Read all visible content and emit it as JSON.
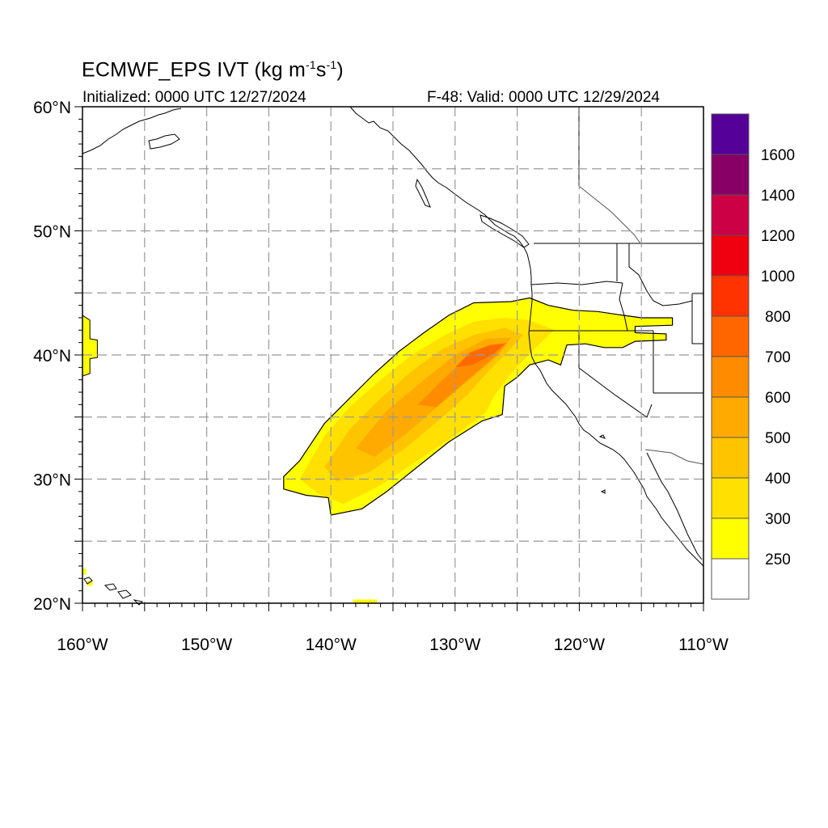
{
  "title": {
    "prefix": "ECMWF_EPS IVT (kg m",
    "sup1": "-1",
    "mid": "s",
    "sup2": "-1",
    "suffix": ")"
  },
  "subtitle_left": "Initialized: 0000 UTC 12/27/2024",
  "subtitle_right": "F-48: Valid: 0000 UTC 12/29/2024",
  "map": {
    "lon_range": [
      -160,
      -110
    ],
    "lat_range": [
      20,
      60
    ],
    "lat_labels": [
      {
        "lat": 60,
        "text": "60°N"
      },
      {
        "lat": 50,
        "text": "50°N"
      },
      {
        "lat": 40,
        "text": "40°N"
      },
      {
        "lat": 30,
        "text": "30°N"
      },
      {
        "lat": 20,
        "text": "20°N"
      }
    ],
    "lon_labels": [
      {
        "lon": -160,
        "text": "160°W"
      },
      {
        "lon": -150,
        "text": "150°W"
      },
      {
        "lon": -140,
        "text": "140°W"
      },
      {
        "lon": -130,
        "text": "130°W"
      },
      {
        "lon": -120,
        "text": "120°W"
      },
      {
        "lon": -110,
        "text": "110°W"
      }
    ],
    "grid_lons": [
      -155,
      -150,
      -145,
      -140,
      -135,
      -130,
      -125,
      -120,
      -115
    ],
    "grid_lats": [
      25,
      30,
      35,
      40,
      45,
      50,
      55
    ],
    "grid_color": "#999999",
    "ivt_outline": [
      [
        -143.8,
        30.2
      ],
      [
        -142.5,
        31.5
      ],
      [
        -140.5,
        34.5
      ],
      [
        -138.5,
        36.5
      ],
      [
        -136.5,
        38.5
      ],
      [
        -134.5,
        40.3
      ],
      [
        -132.5,
        41.8
      ],
      [
        -130.5,
        43.2
      ],
      [
        -128.5,
        44.2
      ],
      [
        -125.5,
        44.3
      ],
      [
        -124.0,
        44.6
      ],
      [
        -122.5,
        44.0
      ],
      [
        -120.5,
        43.6
      ],
      [
        -118.5,
        43.5
      ],
      [
        -116.5,
        43.2
      ],
      [
        -115.0,
        43.0
      ],
      [
        -112.5,
        43.0
      ],
      [
        -112.5,
        42.4
      ],
      [
        -115.5,
        42.3
      ],
      [
        -115.5,
        41.8
      ],
      [
        -113.0,
        41.7
      ],
      [
        -113.0,
        41.2
      ],
      [
        -115.5,
        41.1
      ],
      [
        -116.5,
        40.6
      ],
      [
        -118.0,
        40.6
      ],
      [
        -119.5,
        40.9
      ],
      [
        -121.0,
        40.8
      ],
      [
        -121.5,
        39.2
      ],
      [
        -122.5,
        39.6
      ],
      [
        -124.0,
        39.2
      ],
      [
        -125.0,
        38.2
      ],
      [
        -126.0,
        37.5
      ],
      [
        -126.2,
        35.2
      ],
      [
        -127.8,
        34.7
      ],
      [
        -130.5,
        33.0
      ],
      [
        -133.0,
        31.0
      ],
      [
        -135.5,
        29.0
      ],
      [
        -137.5,
        27.6
      ],
      [
        -140.0,
        27.1
      ],
      [
        -140.2,
        28.5
      ],
      [
        -142.0,
        28.7
      ],
      [
        -143.8,
        29.2
      ]
    ],
    "ivt_band_300": [
      [
        -142.5,
        30.0
      ],
      [
        -140.5,
        33.5
      ],
      [
        -138.5,
        35.8
      ],
      [
        -136.0,
        38.0
      ],
      [
        -133.5,
        40.0
      ],
      [
        -131.0,
        41.5
      ],
      [
        -128.5,
        42.7
      ],
      [
        -126.0,
        43.0
      ],
      [
        -124.0,
        42.8
      ],
      [
        -122.0,
        42.0
      ],
      [
        -123.5,
        40.6
      ],
      [
        -125.5,
        38.5
      ],
      [
        -126.8,
        36.8
      ],
      [
        -127.5,
        35.4
      ],
      [
        -130.0,
        33.5
      ],
      [
        -133.0,
        31.5
      ],
      [
        -136.0,
        29.5
      ],
      [
        -139.0,
        28.0
      ],
      [
        -141.0,
        28.8
      ]
    ],
    "ivt_band_400": [
      [
        -140.5,
        31.0
      ],
      [
        -138.5,
        34.0
      ],
      [
        -136.0,
        36.5
      ],
      [
        -133.5,
        38.7
      ],
      [
        -131.0,
        40.5
      ],
      [
        -128.5,
        41.6
      ],
      [
        -126.0,
        42.2
      ],
      [
        -124.5,
        41.6
      ],
      [
        -126.0,
        40.0
      ],
      [
        -127.5,
        38.5
      ],
      [
        -129.0,
        36.8
      ],
      [
        -131.0,
        35.0
      ],
      [
        -134.0,
        32.5
      ],
      [
        -137.0,
        30.5
      ],
      [
        -139.5,
        29.8
      ]
    ],
    "ivt_band_500": [
      [
        -138.0,
        32.5
      ],
      [
        -135.5,
        35.5
      ],
      [
        -132.5,
        38.0
      ],
      [
        -130.0,
        40.0
      ],
      [
        -127.5,
        41.3
      ],
      [
        -125.5,
        41.4
      ],
      [
        -126.5,
        40.0
      ],
      [
        -128.5,
        38.3
      ],
      [
        -131.0,
        36.2
      ],
      [
        -134.0,
        33.6
      ],
      [
        -136.5,
        31.8
      ]
    ],
    "ivt_band_600": [
      [
        -133.0,
        36.0
      ],
      [
        -131.0,
        38.0
      ],
      [
        -129.0,
        39.8
      ],
      [
        -127.2,
        40.8
      ],
      [
        -125.8,
        41.0
      ],
      [
        -127.0,
        39.7
      ],
      [
        -129.0,
        38.0
      ],
      [
        -131.5,
        35.8
      ]
    ],
    "ivt_band_700": [
      [
        -130.0,
        39.0
      ],
      [
        -128.8,
        40.2
      ],
      [
        -127.2,
        40.8
      ],
      [
        -126.0,
        40.9
      ],
      [
        -127.0,
        40.0
      ],
      [
        -128.6,
        39.2
      ]
    ],
    "small_patches": [
      {
        "poly": [
          [
            -160,
            43.2
          ],
          [
            -159.4,
            42.8
          ],
          [
            -159.4,
            41.3
          ],
          [
            -158.8,
            41.2
          ],
          [
            -158.8,
            39.8
          ],
          [
            -159.4,
            39.7
          ],
          [
            -159.4,
            38.5
          ],
          [
            -160,
            38.3
          ]
        ]
      },
      {
        "poly": [
          [
            -138.2,
            20.3
          ],
          [
            -136.3,
            20.3
          ],
          [
            -136.3,
            20.0
          ],
          [
            -138.2,
            20.0
          ]
        ]
      },
      {
        "poly": [
          [
            -160,
            22.8
          ],
          [
            -159.7,
            22.8
          ],
          [
            -159.7,
            22.3
          ],
          [
            -160,
            22.3
          ]
        ]
      },
      {
        "poly": [
          [
            -159.6,
            21.8
          ],
          [
            -159.2,
            21.8
          ],
          [
            -159.2,
            21.4
          ],
          [
            -159.6,
            21.4
          ]
        ]
      }
    ]
  },
  "colorbar": {
    "colors": [
      "#ffffff",
      "#ffff00",
      "#ffe000",
      "#ffc400",
      "#ffaa00",
      "#ff8c00",
      "#ff6600",
      "#ff3300",
      "#ee0011",
      "#cc0044",
      "#880066",
      "#550099"
    ],
    "labels": [
      "250",
      "300",
      "400",
      "500",
      "600",
      "700",
      "800",
      "1000",
      "1200",
      "1400",
      "1600"
    ]
  }
}
